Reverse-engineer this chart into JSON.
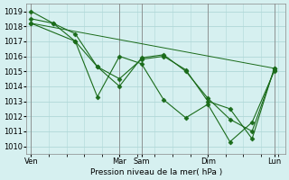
{
  "bg_color": "#d6f0f0",
  "grid_color": "#b0d8d8",
  "line_color": "#1a6b1a",
  "marker_color": "#1a6b1a",
  "ylabel": "Pression niveau de la mer( hPa )",
  "ylim": [
    1009.5,
    1019.5
  ],
  "yticks": [
    1010,
    1011,
    1012,
    1013,
    1014,
    1015,
    1016,
    1017,
    1018,
    1019
  ],
  "xtick_labels": [
    "Ven",
    "Mar",
    "Sam",
    "Dim",
    "Lun"
  ],
  "xtick_positions": [
    0,
    4,
    5,
    8,
    11
  ],
  "lines": [
    {
      "x": [
        0,
        1,
        2,
        3,
        4,
        5,
        6,
        7,
        8,
        9,
        10,
        11
      ],
      "y": [
        1019.0,
        1018.2,
        1017.0,
        1015.3,
        1014.5,
        1015.8,
        1016.0,
        1015.1,
        1013.0,
        1012.5,
        1010.5,
        1015.2
      ]
    },
    {
      "x": [
        0,
        1,
        2,
        3,
        4,
        5,
        6,
        7,
        8,
        9,
        10,
        11
      ],
      "y": [
        1018.5,
        1018.2,
        1017.5,
        1015.3,
        1014.0,
        1015.9,
        1016.1,
        1015.0,
        1013.2,
        1011.8,
        1011.0,
        1015.1
      ]
    },
    {
      "x": [
        0,
        2,
        3,
        4,
        5,
        6,
        7,
        8,
        9,
        10,
        11
      ],
      "y": [
        1018.2,
        1017.0,
        1013.3,
        1016.0,
        1015.5,
        1013.1,
        1011.9,
        1012.8,
        1010.3,
        1011.6,
        1015.0
      ]
    },
    {
      "x": [
        0,
        11
      ],
      "y": [
        1018.2,
        1015.2
      ]
    }
  ]
}
